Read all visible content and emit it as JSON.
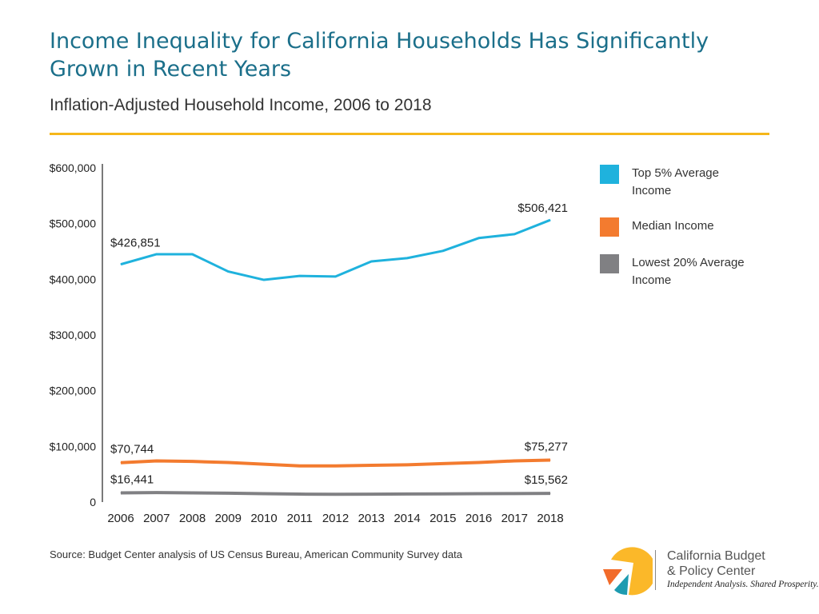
{
  "title": "Income Inequality for California Households Has Significantly Grown in Recent Years",
  "subtitle": "Inflation-Adjusted Household Income, 2006 to 2018",
  "source": "Source: Budget Center analysis of US Census Bureau, American Community Survey data",
  "logo": {
    "line1": "California Budget",
    "line2": "& Policy Center",
    "tagline": "Independent Analysis. Shared Prosperity."
  },
  "colors": {
    "title": "#1b6f8a",
    "rule": "#f5b71a"
  },
  "chart_data": {
    "type": "line",
    "x": [
      2006,
      2007,
      2008,
      2009,
      2010,
      2011,
      2012,
      2013,
      2014,
      2015,
      2016,
      2017,
      2018
    ],
    "ylim": [
      0,
      600000
    ],
    "yticks": [
      0,
      100000,
      200000,
      300000,
      400000,
      500000,
      600000
    ],
    "ytick_labels": [
      "0",
      "$100,000",
      "$200,000",
      "$300,000",
      "$400,000",
      "$500,000",
      "$600,000"
    ],
    "grid": false,
    "legend": "right",
    "series": [
      {
        "name": "Top 5% Average Income",
        "color": "#1fb2dd",
        "values": [
          426851,
          445000,
          445000,
          414000,
          399000,
          406000,
          405000,
          432000,
          438000,
          451000,
          474000,
          481000,
          506421
        ],
        "labels": {
          "first": "$426,851",
          "last": "$506,421"
        }
      },
      {
        "name": "Median Income",
        "color": "#f37b2f",
        "values": [
          70744,
          74000,
          73000,
          71000,
          68000,
          65000,
          65000,
          66000,
          67000,
          69000,
          71000,
          74000,
          75277
        ],
        "labels": {
          "first": "$70,744",
          "last": "$75,277"
        }
      },
      {
        "name": "Lowest 20% Average Income",
        "color": "#808083",
        "values": [
          16441,
          17000,
          16500,
          16000,
          15000,
          14300,
          14000,
          14200,
          14500,
          14800,
          15000,
          15300,
          15562
        ],
        "labels": {
          "first": "$16,441",
          "last": "$15,562"
        }
      }
    ]
  }
}
